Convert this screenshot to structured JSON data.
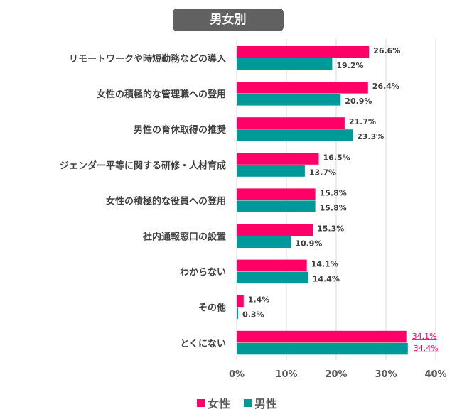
{
  "chart_data": {
    "type": "bar",
    "orientation": "horizontal",
    "title": "男女別",
    "categories": [
      "リモートワークや時短勤務などの導入",
      "女性の積極的な管理職への登用",
      "男性の育休取得の推奨",
      "ジェンダー平等に関する研修・人材育成",
      "女性の積極的な役員への登用",
      "社内通報窓口の設置",
      "わからない",
      "その他",
      "とくにない"
    ],
    "series": [
      {
        "name": "女性",
        "color": "#ff0066",
        "values": [
          26.6,
          26.4,
          21.7,
          16.5,
          15.8,
          15.3,
          14.1,
          1.4,
          34.1
        ],
        "labels": [
          "26.6%",
          "26.4%",
          "21.7%",
          "16.5%",
          "15.8%",
          "15.3%",
          "14.1%",
          "1.4%",
          "34.1%"
        ]
      },
      {
        "name": "男性",
        "color": "#009999",
        "values": [
          19.2,
          20.9,
          23.3,
          13.7,
          15.8,
          10.9,
          14.4,
          0.3,
          34.4
        ],
        "labels": [
          "19.2%",
          "20.9%",
          "23.3%",
          "13.7%",
          "15.8%",
          "10.9%",
          "14.4%",
          "0.3%",
          "34.4%"
        ]
      }
    ],
    "highlight_color": "#ff0066",
    "highlighted_category_index": 8,
    "xlim": [
      0,
      40
    ],
    "xticks": [
      "0%",
      "10%",
      "20%",
      "30%",
      "40%"
    ],
    "grid": true,
    "legend": "bottom-center"
  }
}
